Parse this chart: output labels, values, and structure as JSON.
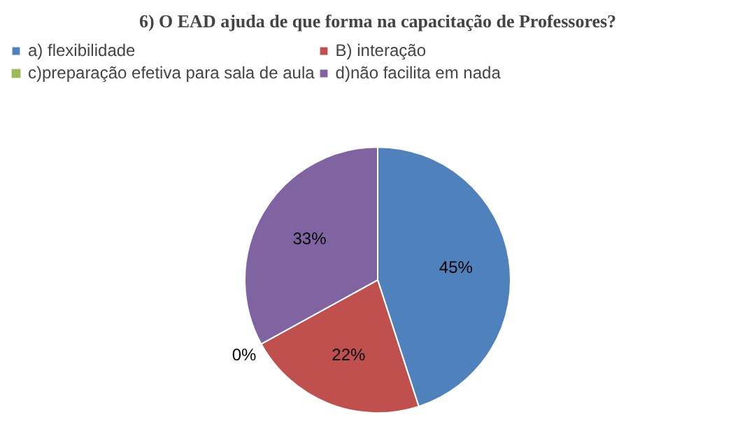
{
  "chart_data": {
    "type": "pie",
    "title": "6) O EAD ajuda de que forma na capacitação de Professores?",
    "categories": [
      "a) flexibilidade",
      "B) interação",
      "c)preparação efetiva para sala de aula",
      "d)não facilita em nada"
    ],
    "values": [
      45,
      22,
      0,
      33
    ],
    "colors": [
      "#4f81bd",
      "#c0504d",
      "#9bbb59",
      "#8064a2"
    ],
    "value_labels": [
      "45%",
      "22%",
      "0%",
      "33%"
    ],
    "legend": "top"
  }
}
